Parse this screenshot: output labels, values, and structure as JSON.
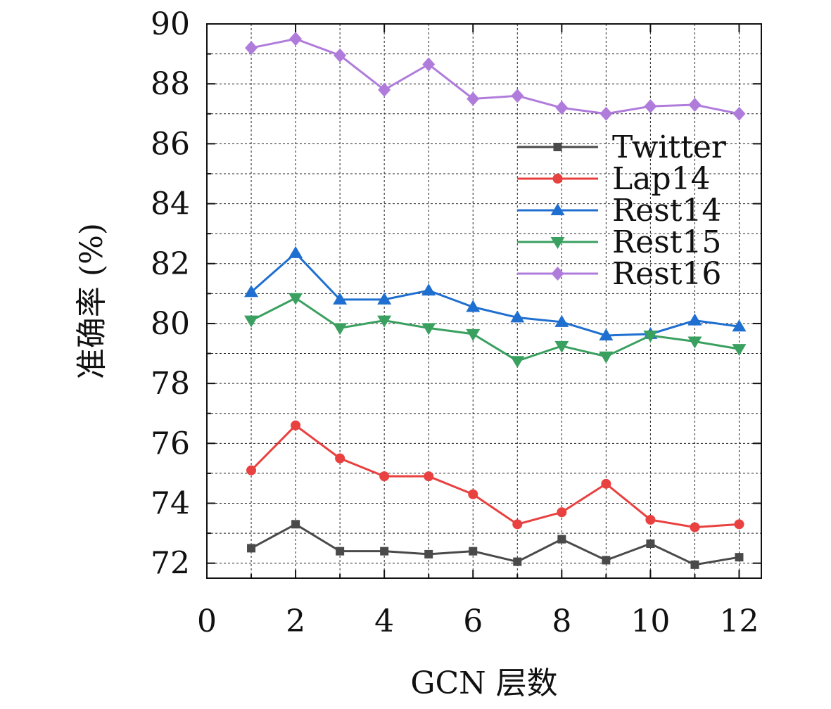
{
  "chart_data": {
    "type": "line",
    "xlabel": "GCN 层数",
    "ylabel": "准确率 (%)",
    "xlim": [
      0,
      12.5
    ],
    "ylim": [
      71.5,
      90
    ],
    "xticks": [
      "0",
      "2",
      "4",
      "6",
      "8",
      "10",
      "12"
    ],
    "yticks": [
      "72",
      "74",
      "76",
      "78",
      "80",
      "82",
      "84",
      "86",
      "88",
      "90"
    ],
    "grid": true,
    "legend_position": "right",
    "x": [
      1,
      2,
      3,
      4,
      5,
      6,
      7,
      8,
      9,
      10,
      11,
      12
    ],
    "series": [
      {
        "name": "Twitter",
        "color": "#4a4a4a",
        "marker": "square",
        "values": [
          72.5,
          73.3,
          72.4,
          72.4,
          72.3,
          72.4,
          72.05,
          72.8,
          72.1,
          72.65,
          71.95,
          72.2
        ]
      },
      {
        "name": "Lap14",
        "color": "#e8413f",
        "marker": "circle",
        "values": [
          75.1,
          76.6,
          75.5,
          74.9,
          74.9,
          74.3,
          73.3,
          73.7,
          74.65,
          73.45,
          73.2,
          73.3
        ]
      },
      {
        "name": "Rest14",
        "color": "#1f6fd0",
        "marker": "triangle-up",
        "values": [
          81.05,
          82.35,
          80.8,
          80.8,
          81.1,
          80.55,
          80.2,
          80.05,
          79.6,
          79.65,
          80.1,
          79.9
        ]
      },
      {
        "name": "Rest15",
        "color": "#3aa060",
        "marker": "triangle-down",
        "values": [
          80.1,
          80.85,
          79.85,
          80.1,
          79.85,
          79.65,
          78.75,
          79.25,
          78.9,
          79.6,
          79.4,
          79.15
        ]
      },
      {
        "name": "Rest16",
        "color": "#b07cdc",
        "marker": "diamond",
        "values": [
          89.2,
          89.5,
          88.95,
          87.8,
          88.65,
          87.5,
          87.6,
          87.2,
          87.0,
          87.25,
          87.3,
          87.0
        ]
      }
    ]
  }
}
